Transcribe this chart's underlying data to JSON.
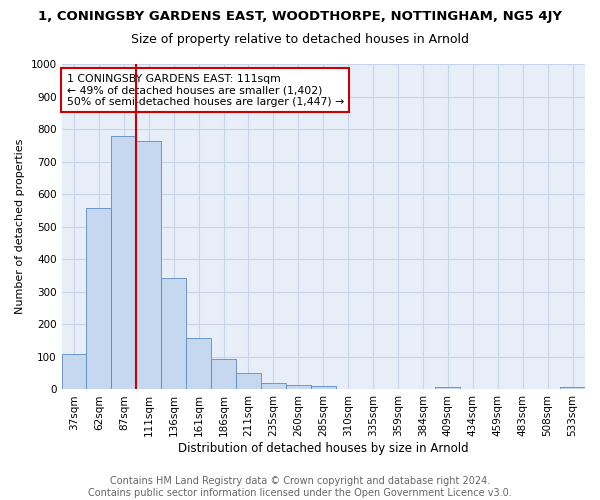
{
  "title": "1, CONINGSBY GARDENS EAST, WOODTHORPE, NOTTINGHAM, NG5 4JY",
  "subtitle": "Size of property relative to detached houses in Arnold",
  "xlabel": "Distribution of detached houses by size in Arnold",
  "ylabel": "Number of detached properties",
  "categories": [
    "37sqm",
    "62sqm",
    "87sqm",
    "111sqm",
    "136sqm",
    "161sqm",
    "186sqm",
    "211sqm",
    "235sqm",
    "260sqm",
    "285sqm",
    "310sqm",
    "335sqm",
    "359sqm",
    "384sqm",
    "409sqm",
    "434sqm",
    "459sqm",
    "483sqm",
    "508sqm",
    "533sqm"
  ],
  "values": [
    110,
    557,
    779,
    762,
    341,
    158,
    95,
    50,
    20,
    13,
    12,
    0,
    0,
    0,
    0,
    8,
    0,
    0,
    0,
    0,
    8
  ],
  "bar_color": "#c5d8f0",
  "bar_edge_color": "#5b8ac5",
  "grid_color": "#c8d4e8",
  "background_color": "#e8eef8",
  "vline_x_index": 3,
  "vline_color": "#cc0000",
  "annotation_text": "1 CONINGSBY GARDENS EAST: 111sqm\n← 49% of detached houses are smaller (1,402)\n50% of semi-detached houses are larger (1,447) →",
  "annotation_box_color": "#ffffff",
  "annotation_box_edge_color": "#cc0000",
  "footer_text": "Contains HM Land Registry data © Crown copyright and database right 2024.\nContains public sector information licensed under the Open Government Licence v3.0.",
  "ylim": [
    0,
    1000
  ],
  "yticks": [
    0,
    100,
    200,
    300,
    400,
    500,
    600,
    700,
    800,
    900,
    1000
  ],
  "title_fontsize": 9.5,
  "subtitle_fontsize": 9,
  "xlabel_fontsize": 8.5,
  "ylabel_fontsize": 8,
  "tick_fontsize": 7.5,
  "annotation_fontsize": 7.8,
  "footer_fontsize": 7
}
